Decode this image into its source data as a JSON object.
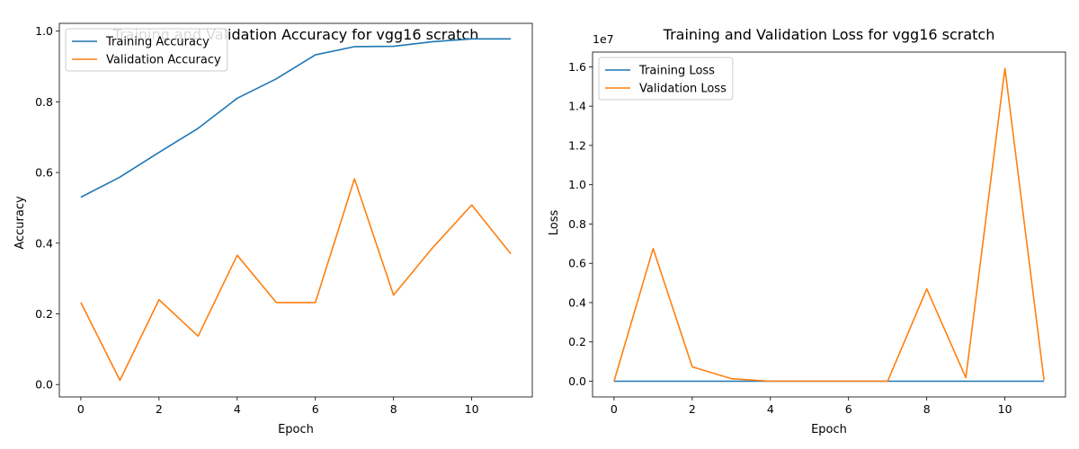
{
  "chart_data": [
    {
      "type": "line",
      "title": "Training and Validation Accuracy for vgg16 scratch",
      "xlabel": "Epoch",
      "ylabel": "Accuracy",
      "x": [
        0,
        1,
        2,
        3,
        4,
        5,
        6,
        7,
        8,
        9,
        10,
        11
      ],
      "xlim": [
        -0.55,
        11.55
      ],
      "ylim": [
        -0.035,
        1.022
      ],
      "xticks": [
        0,
        2,
        4,
        6,
        8,
        10
      ],
      "xtick_labels": [
        "0",
        "2",
        "4",
        "6",
        "8",
        "10"
      ],
      "yticks": [
        0.0,
        0.2,
        0.4,
        0.6,
        0.8,
        1.0
      ],
      "ytick_labels": [
        "0.0",
        "0.2",
        "0.4",
        "0.6",
        "0.8",
        "1.0"
      ],
      "offset_text": "",
      "legend_position": "upper-left",
      "grid": false,
      "series": [
        {
          "name": "Training Accuracy",
          "color": "#1f77b4",
          "values": [
            0.53,
            0.587,
            0.657,
            0.725,
            0.81,
            0.865,
            0.933,
            0.956,
            0.957,
            0.97,
            0.978,
            0.978
          ]
        },
        {
          "name": "Validation Accuracy",
          "color": "#ff7f0e",
          "values": [
            0.232,
            0.012,
            0.24,
            0.137,
            0.366,
            0.232,
            0.232,
            0.582,
            0.253,
            0.387,
            0.508,
            0.37
          ]
        }
      ]
    },
    {
      "type": "line",
      "title": "Training and Validation Loss for vgg16 scratch",
      "xlabel": "Epoch",
      "ylabel": "Loss",
      "x": [
        0,
        1,
        2,
        3,
        4,
        5,
        6,
        7,
        8,
        9,
        10,
        11
      ],
      "xlim": [
        -0.55,
        11.55
      ],
      "ylim": [
        -0.08,
        1.675
      ],
      "xticks": [
        0,
        2,
        4,
        6,
        8,
        10
      ],
      "xtick_labels": [
        "0",
        "2",
        "4",
        "6",
        "8",
        "10"
      ],
      "yticks": [
        0.0,
        0.2,
        0.4,
        0.6,
        0.8,
        1.0,
        1.2,
        1.4,
        1.6
      ],
      "ytick_labels": [
        "0.0",
        "0.2",
        "0.4",
        "0.6",
        "0.8",
        "1.0",
        "1.2",
        "1.4",
        "1.6"
      ],
      "offset_text": "1e7",
      "legend_position": "upper-left",
      "grid": false,
      "series": [
        {
          "name": "Training Loss",
          "color": "#1f77b4",
          "values": [
            0,
            0,
            0,
            0,
            0,
            0,
            0,
            0,
            0,
            0,
            0,
            0
          ]
        },
        {
          "name": "Validation Loss",
          "color": "#ff7f0e",
          "values": [
            0,
            0.675,
            0.073,
            0.013,
            0,
            0,
            0,
            0,
            0.47,
            0.018,
            1.592,
            0.005
          ]
        }
      ]
    }
  ]
}
